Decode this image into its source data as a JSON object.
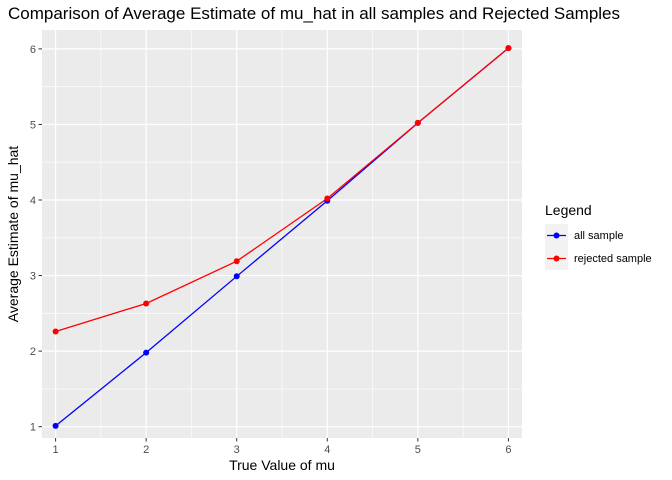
{
  "chart_data": {
    "type": "line",
    "title": "Comparison of Average Estimate of mu_hat in all samples and Rejected Samples",
    "xlabel": "True Value of mu",
    "ylabel": "Average Estimate of mu_hat",
    "x": [
      1,
      2,
      3,
      4,
      5,
      6
    ],
    "xlim": [
      0.85,
      6.15
    ],
    "ylim": [
      0.85,
      6.25
    ],
    "xticks": [
      1,
      2,
      3,
      4,
      5,
      6
    ],
    "yticks": [
      1,
      2,
      3,
      4,
      5,
      6
    ],
    "grid": true,
    "legend": {
      "title": "Legend",
      "position": "right"
    },
    "series": [
      {
        "name": "all sample",
        "color": "#0000FF",
        "values": [
          1.01,
          1.98,
          2.99,
          3.99,
          5.02,
          6.01
        ]
      },
      {
        "name": "rejected sample",
        "color": "#FF0000",
        "values": [
          2.26,
          2.63,
          3.19,
          4.02,
          5.02,
          6.01
        ]
      }
    ]
  }
}
